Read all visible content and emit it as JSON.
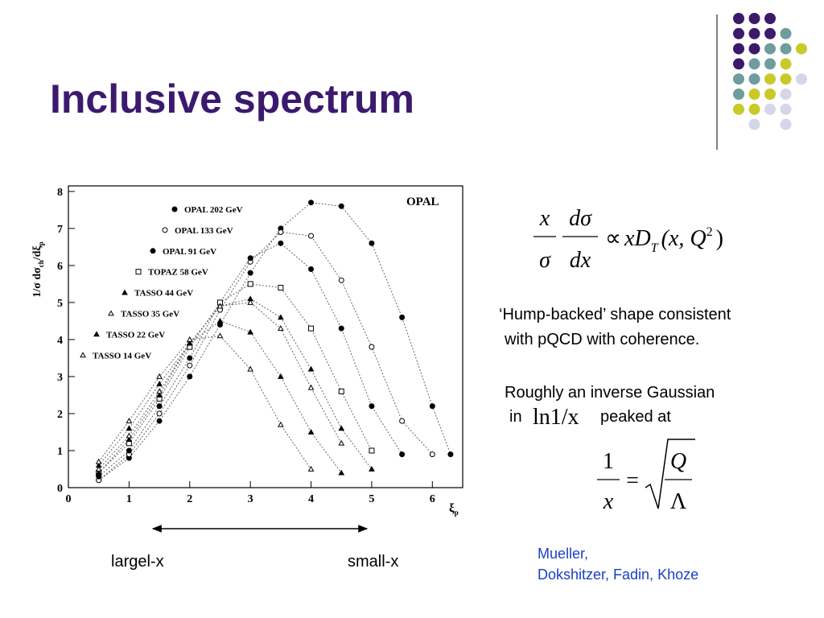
{
  "header": {
    "title": "Inclusive spectrum"
  },
  "plot": {
    "type": "scatter",
    "label": "OPAL",
    "y_label": [
      "1/σ dσ",
      "ch",
      "/dξ",
      "p"
    ],
    "x_label": [
      "ξ",
      "p"
    ],
    "xlim": [
      0,
      6.5
    ],
    "ylim": [
      0,
      8.15
    ],
    "xticks": [
      0,
      1,
      2,
      3,
      4,
      5,
      6
    ],
    "yticks": [
      0,
      1,
      2,
      3,
      4,
      5,
      6,
      7,
      8
    ],
    "series": [
      {
        "name": "OPAL 202 GeV",
        "marker": "circle",
        "filled": true,
        "x": [
          0.5,
          1,
          1.5,
          2,
          2.5,
          3,
          3.5,
          4,
          4.5,
          5,
          5.5,
          6,
          6.3
        ],
        "values": [
          0.2,
          0.8,
          1.8,
          3.0,
          4.4,
          5.8,
          7.0,
          7.7,
          7.6,
          6.6,
          4.6,
          2.2,
          0.9
        ]
      },
      {
        "name": "OPAL 133 GeV",
        "marker": "circle",
        "filled": false,
        "x": [
          0.5,
          1,
          1.5,
          2,
          2.5,
          3,
          3.5,
          4,
          4.5,
          5,
          5.5,
          6
        ],
        "values": [
          0.2,
          0.9,
          2.0,
          3.3,
          4.8,
          6.1,
          6.9,
          6.8,
          5.6,
          3.8,
          1.8,
          0.9
        ]
      },
      {
        "name": "OPAL 91 GeV",
        "marker": "circle",
        "filled": true,
        "x": [
          0.5,
          1,
          1.5,
          2,
          2.5,
          3,
          3.5,
          4,
          4.5,
          5,
          5.5
        ],
        "values": [
          0.3,
          1.0,
          2.2,
          3.5,
          5.0,
          6.2,
          6.6,
          5.9,
          4.3,
          2.2,
          0.9
        ]
      },
      {
        "name": "TOPAZ 58 GeV",
        "marker": "square",
        "filled": false,
        "x": [
          0.5,
          1,
          1.5,
          2,
          2.5,
          3,
          3.5,
          4,
          4.5,
          5
        ],
        "values": [
          0.4,
          1.2,
          2.4,
          3.8,
          5.0,
          5.5,
          5.4,
          4.3,
          2.6,
          1.0
        ]
      },
      {
        "name": "TASSO 44 GeV",
        "marker": "triangle",
        "filled": true,
        "x": [
          0.5,
          1,
          1.5,
          2,
          2.5,
          3,
          3.5,
          4,
          4.5,
          5
        ],
        "values": [
          0.4,
          1.3,
          2.5,
          3.9,
          4.9,
          5.1,
          4.6,
          3.2,
          1.6,
          0.5
        ]
      },
      {
        "name": "TASSO 35 GeV",
        "marker": "triangle",
        "filled": false,
        "x": [
          0.5,
          1,
          1.5,
          2,
          2.5,
          3,
          3.5,
          4,
          4.5
        ],
        "values": [
          0.5,
          1.4,
          2.6,
          3.9,
          4.9,
          5.0,
          4.3,
          2.7,
          1.2
        ]
      },
      {
        "name": "TASSO 22 GeV",
        "marker": "triangle",
        "filled": true,
        "x": [
          0.5,
          1,
          1.5,
          2,
          2.5,
          3,
          3.5,
          4,
          4.5
        ],
        "values": [
          0.6,
          1.6,
          2.8,
          3.9,
          4.5,
          4.2,
          3.0,
          1.5,
          0.4
        ]
      },
      {
        "name": "TASSO 14 GeV",
        "marker": "triangle",
        "filled": false,
        "x": [
          0.5,
          1,
          1.5,
          2,
          2.5,
          3,
          3.5,
          4
        ],
        "values": [
          0.7,
          1.8,
          3.0,
          4.0,
          4.1,
          3.2,
          1.7,
          0.5
        ]
      }
    ]
  },
  "formula_1": {
    "num_left": "x",
    "den_left": "σ",
    "num_right": "dσ",
    "den_right": "dx",
    "prop": "∝",
    "rhs": "xD",
    "sub": "T",
    "args": "(x, Q",
    "sup": "2",
    "close": ")"
  },
  "notes": [
    "‘Hump-backed’ shape consistent",
    "with pQCD with coherence.",
    "Roughly an inverse Gaussian",
    "in",
    "ln1/x",
    "peaked at"
  ],
  "formula_2": {
    "num_left": "1",
    "den_left": "x",
    "eq": "=",
    "num_right": "Q",
    "den_right": "Λ"
  },
  "arrow_labels": [
    "largel-x",
    "small-x"
  ],
  "references": [
    "Mueller,",
    "Dokshitzer, Fadin, Khoze"
  ]
}
